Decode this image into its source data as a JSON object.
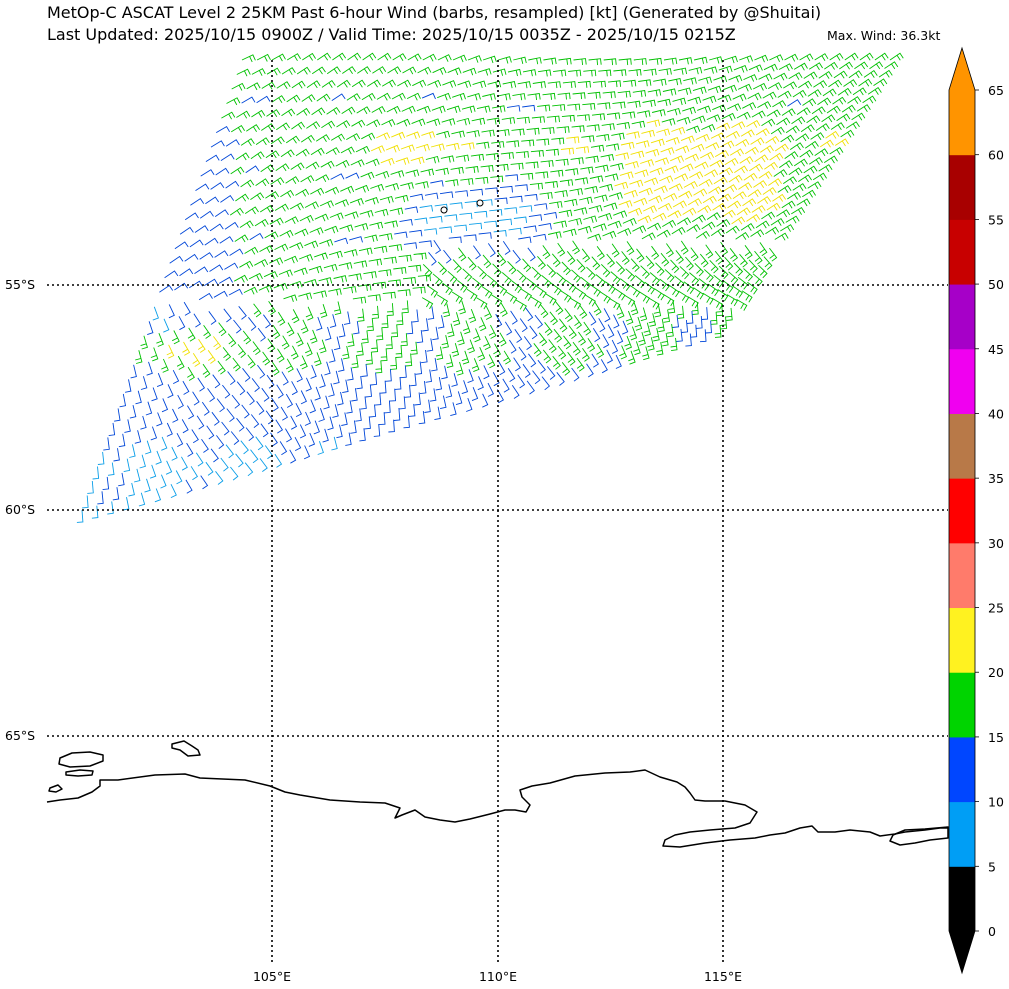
{
  "title": {
    "line1": "MetOp-C ASCAT Level 2 25KM Past 6-hour Wind (barbs, resampled) [kt] (Generated by @Shuitai)",
    "line2": "Last Updated: 2025/10/15 0900Z / Valid Time: 2025/10/15 0035Z - 2025/10/15 0215Z",
    "max_wind": "Max. Wind: 36.3kt"
  },
  "map": {
    "lat_labels": [
      "55°S",
      "60°S",
      "65°S"
    ],
    "lon_labels": [
      "105°E",
      "110°E",
      "115°E"
    ],
    "gridline_style": "dotted",
    "coastline_color": "#000000",
    "swath": {
      "region_hint": "Southern Ocean, south of Australia",
      "wind_range_kt": [
        0,
        36.3
      ]
    }
  },
  "colorbar": {
    "ticks": [
      "0",
      "5",
      "10",
      "15",
      "20",
      "25",
      "30",
      "35",
      "40",
      "45",
      "50",
      "55",
      "60",
      "65"
    ],
    "colors": [
      "#000000",
      "#009ef5",
      "#0046ff",
      "#00d400",
      "#fff220",
      "#ff7b6b",
      "#ff0000",
      "#b87948",
      "#f000f0",
      "#a600c8",
      "#c80000",
      "#a80000",
      "#ff9400"
    ],
    "extend": "both"
  }
}
